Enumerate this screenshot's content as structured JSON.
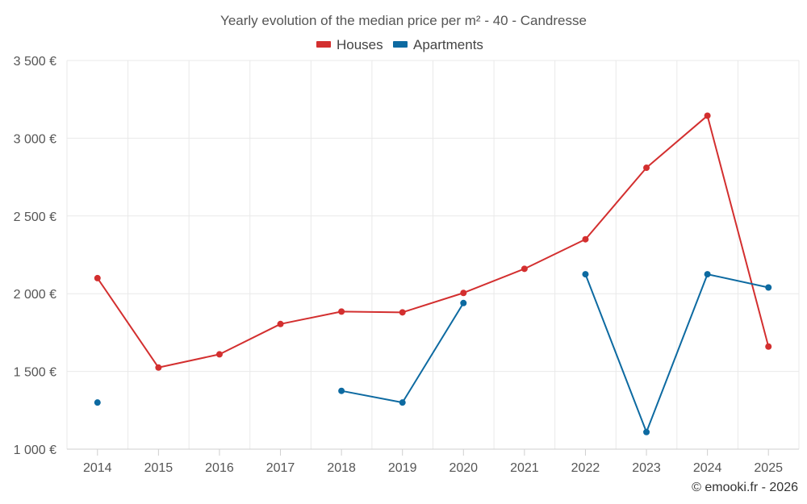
{
  "chart_data": {
    "type": "line",
    "title": "Yearly evolution of the median price per m² - 40 - Candresse",
    "categories": [
      "2014",
      "2015",
      "2016",
      "2017",
      "2018",
      "2019",
      "2020",
      "2021",
      "2022",
      "2023",
      "2024",
      "2025"
    ],
    "ylim": [
      1000,
      3500
    ],
    "yticks": [
      1000,
      1500,
      2000,
      2500,
      3000,
      3500
    ],
    "ytick_labels": [
      "1 000 €",
      "1 500 €",
      "2 000 €",
      "2 500 €",
      "3 000 €",
      "3 500 €"
    ],
    "legend_position": "top-center",
    "grid": true,
    "series": [
      {
        "name": "Houses",
        "color": "#d32f2f",
        "values": [
          2100,
          1525,
          1610,
          1805,
          1885,
          1880,
          2005,
          2160,
          2350,
          2810,
          3145,
          1660
        ]
      },
      {
        "name": "Apartments",
        "color": "#0d6aa1",
        "values": [
          1300,
          null,
          null,
          null,
          1375,
          1300,
          1940,
          null,
          2125,
          1110,
          2125,
          2040
        ]
      }
    ],
    "credit": "© emooki.fr - 2026"
  }
}
